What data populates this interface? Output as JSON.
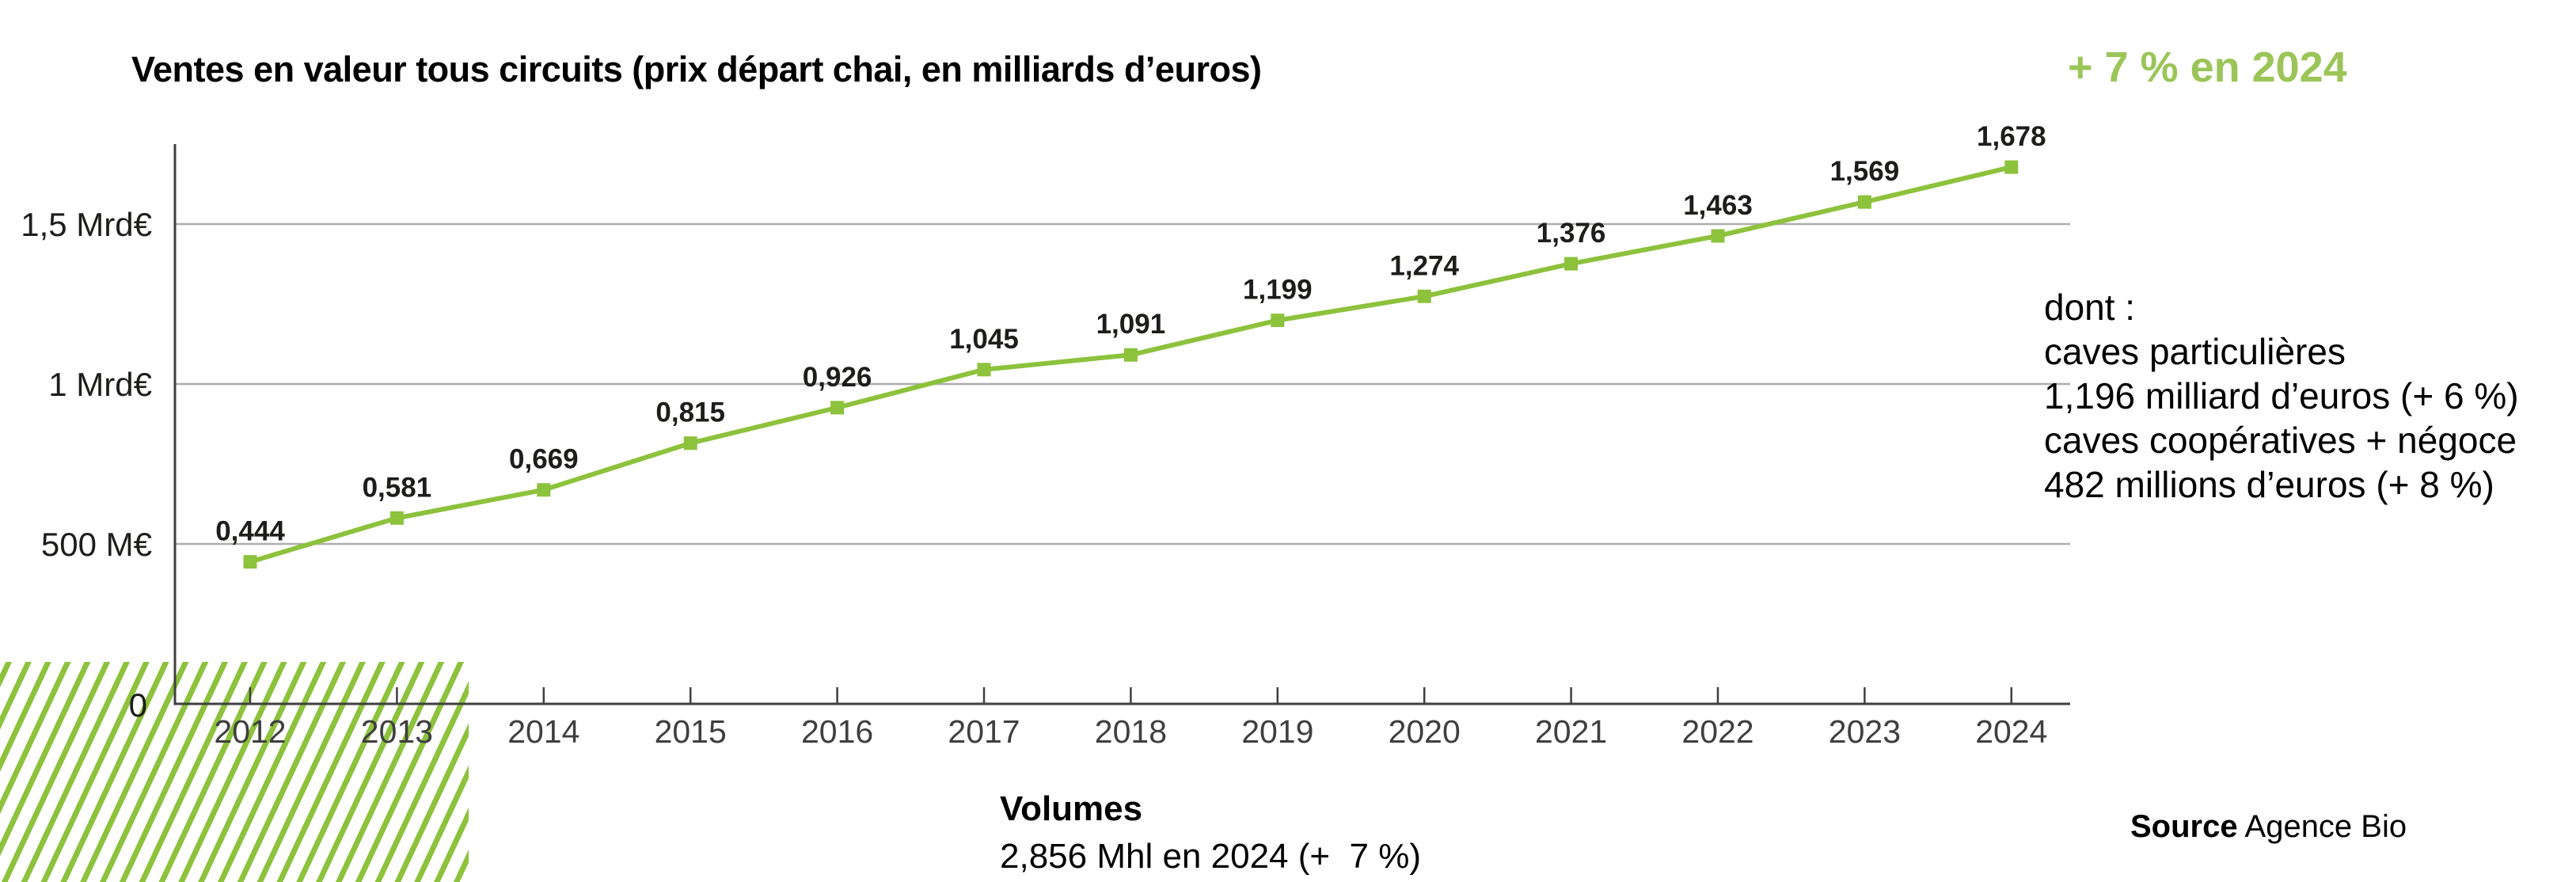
{
  "header": {
    "title": "Ventes en valeur tous circuits (prix départ chai, en milliards d’euros)",
    "highlight": "+ 7 % en 2024",
    "highlight_color": "#9BC558"
  },
  "chart_data": {
    "type": "line",
    "title": "Ventes en valeur tous circuits (prix départ chai, en milliards d’euros)",
    "x": [
      2012,
      2013,
      2014,
      2015,
      2016,
      2017,
      2018,
      2019,
      2020,
      2021,
      2022,
      2023,
      2024
    ],
    "series": [
      {
        "name": "Ventes en valeur tous circuits (milliards d’euros)",
        "values": [
          0.444,
          0.581,
          0.669,
          0.815,
          0.926,
          1.045,
          1.091,
          1.199,
          1.274,
          1.376,
          1.463,
          1.569,
          1.678
        ],
        "point_labels": [
          "0,444",
          "0,581",
          "0,669",
          "0,815",
          "0,926",
          "1,045",
          "1,091",
          "1,199",
          "1,274",
          "1,376",
          "1,463",
          "1,569",
          "1,678"
        ],
        "color": "#8CC23C",
        "marker": "square"
      }
    ],
    "yticks": [
      {
        "value": 0,
        "label": "0"
      },
      {
        "value": 0.5,
        "label": "500 M€"
      },
      {
        "value": 1,
        "label": "1 Mrd€"
      },
      {
        "value": 1.5,
        "label": "1,5 Mrd€"
      }
    ],
    "ylim": [
      0,
      1.7
    ],
    "grid": "horizontal-only",
    "legend": "none",
    "hatched_area_years": [
      "2012",
      "2013"
    ],
    "axis_color": "#3F3F3F",
    "grid_color": "#ADADAD",
    "label_color": "#1D1D1B"
  },
  "annotations": {
    "intro": "dont :",
    "caves_particulieres_line1": "caves particulières",
    "caves_particulieres_line2": "1,196 milliard d’euros (+ 6 %)",
    "caves_cooperatives_line1": "caves coopératives + négoce",
    "caves_cooperatives_line2": "482 millions d’euros (+ 8 %)"
  },
  "footer": {
    "volumes_title": "Volumes",
    "volumes_value": "2,856 Mhl en 2024 (+  7 %)",
    "source_label": "Source",
    "source_value": "Agence Bio"
  }
}
